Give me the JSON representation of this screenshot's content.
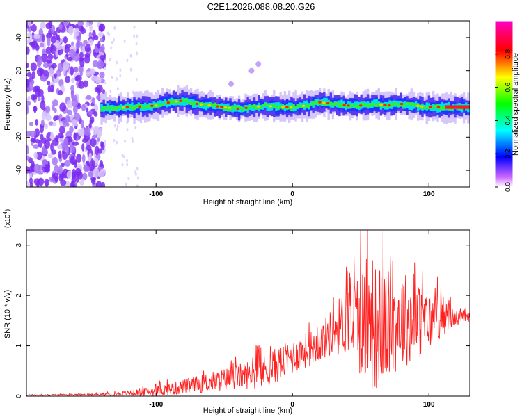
{
  "title": "C2E1.2026.088.08.20.G26",
  "chart_data": [
    {
      "type": "heatmap",
      "name": "spectrogram",
      "xlabel": "Height of straight line (km)",
      "ylabel": "Frequency (Hz)",
      "xlim": [
        -195,
        130
      ],
      "ylim": [
        -50,
        50
      ],
      "xticks": [
        -100,
        0,
        100
      ],
      "yticks": [
        -40,
        -20,
        0,
        20,
        40
      ],
      "trace": {
        "description": "narrow band near 0 Hz from about -140 km to 130 km",
        "points": [
          [
            -140,
            -3
          ],
          [
            -120,
            -2
          ],
          [
            -100,
            -1
          ],
          [
            -90,
            1
          ],
          [
            -80,
            2
          ],
          [
            -70,
            0
          ],
          [
            -60,
            -1
          ],
          [
            -50,
            -2
          ],
          [
            -40,
            -3
          ],
          [
            -30,
            -2
          ],
          [
            -20,
            -1
          ],
          [
            -10,
            -2
          ],
          [
            0,
            -2
          ],
          [
            10,
            -1
          ],
          [
            20,
            1
          ],
          [
            30,
            0
          ],
          [
            40,
            -1
          ],
          [
            50,
            -1
          ],
          [
            60,
            0
          ],
          [
            70,
            -1
          ],
          [
            80,
            0
          ],
          [
            90,
            -1
          ],
          [
            100,
            -2
          ],
          [
            110,
            -2
          ],
          [
            130,
            -2
          ]
        ]
      },
      "noise_region_x": [
        -195,
        -138
      ],
      "side_branch": [
        [
          -60,
          6
        ],
        [
          -45,
          12
        ],
        [
          -30,
          20
        ],
        [
          -25,
          24
        ]
      ],
      "colorbar": {
        "label": "Normalized spectral amplitude",
        "range": [
          0,
          1
        ],
        "ticks": [
          0.0,
          0.2,
          0.4,
          0.6,
          0.8
        ],
        "tick_labels": [
          "0.0",
          "0.2",
          "0.4",
          "0.6",
          "0.8"
        ]
      }
    },
    {
      "type": "line",
      "name": "snr",
      "xlabel": "Height of straight line (km)",
      "ylabel": "SNR (10 * v/v)",
      "y_scale_label": "(x10",
      "y_scale_exp": "4",
      "y_scale_close": ")",
      "xlim": [
        -195,
        130
      ],
      "ylim": [
        0,
        3.3
      ],
      "xticks": [
        -100,
        0,
        100
      ],
      "yticks": [
        0,
        1,
        2,
        3
      ],
      "color": "#ff2020",
      "envelope": {
        "x": [
          -195,
          -140,
          -120,
          -100,
          -80,
          -60,
          -40,
          -20,
          0,
          20,
          30,
          40,
          50,
          60,
          70,
          80,
          90,
          100,
          110,
          120,
          130
        ],
        "mean": [
          0.02,
          0.03,
          0.06,
          0.1,
          0.18,
          0.28,
          0.38,
          0.5,
          0.78,
          1.05,
          1.3,
          1.5,
          1.5,
          1.35,
          1.4,
          1.55,
          1.5,
          1.45,
          1.6,
          1.55,
          1.55
        ],
        "spread": [
          0.01,
          0.02,
          0.05,
          0.1,
          0.15,
          0.2,
          0.25,
          0.35,
          0.35,
          0.35,
          0.5,
          0.7,
          1.1,
          1.3,
          1.1,
          1.0,
          0.8,
          0.6,
          0.4,
          0.15,
          0.1
        ]
      },
      "peak": [
        55,
        3.3
      ]
    }
  ]
}
